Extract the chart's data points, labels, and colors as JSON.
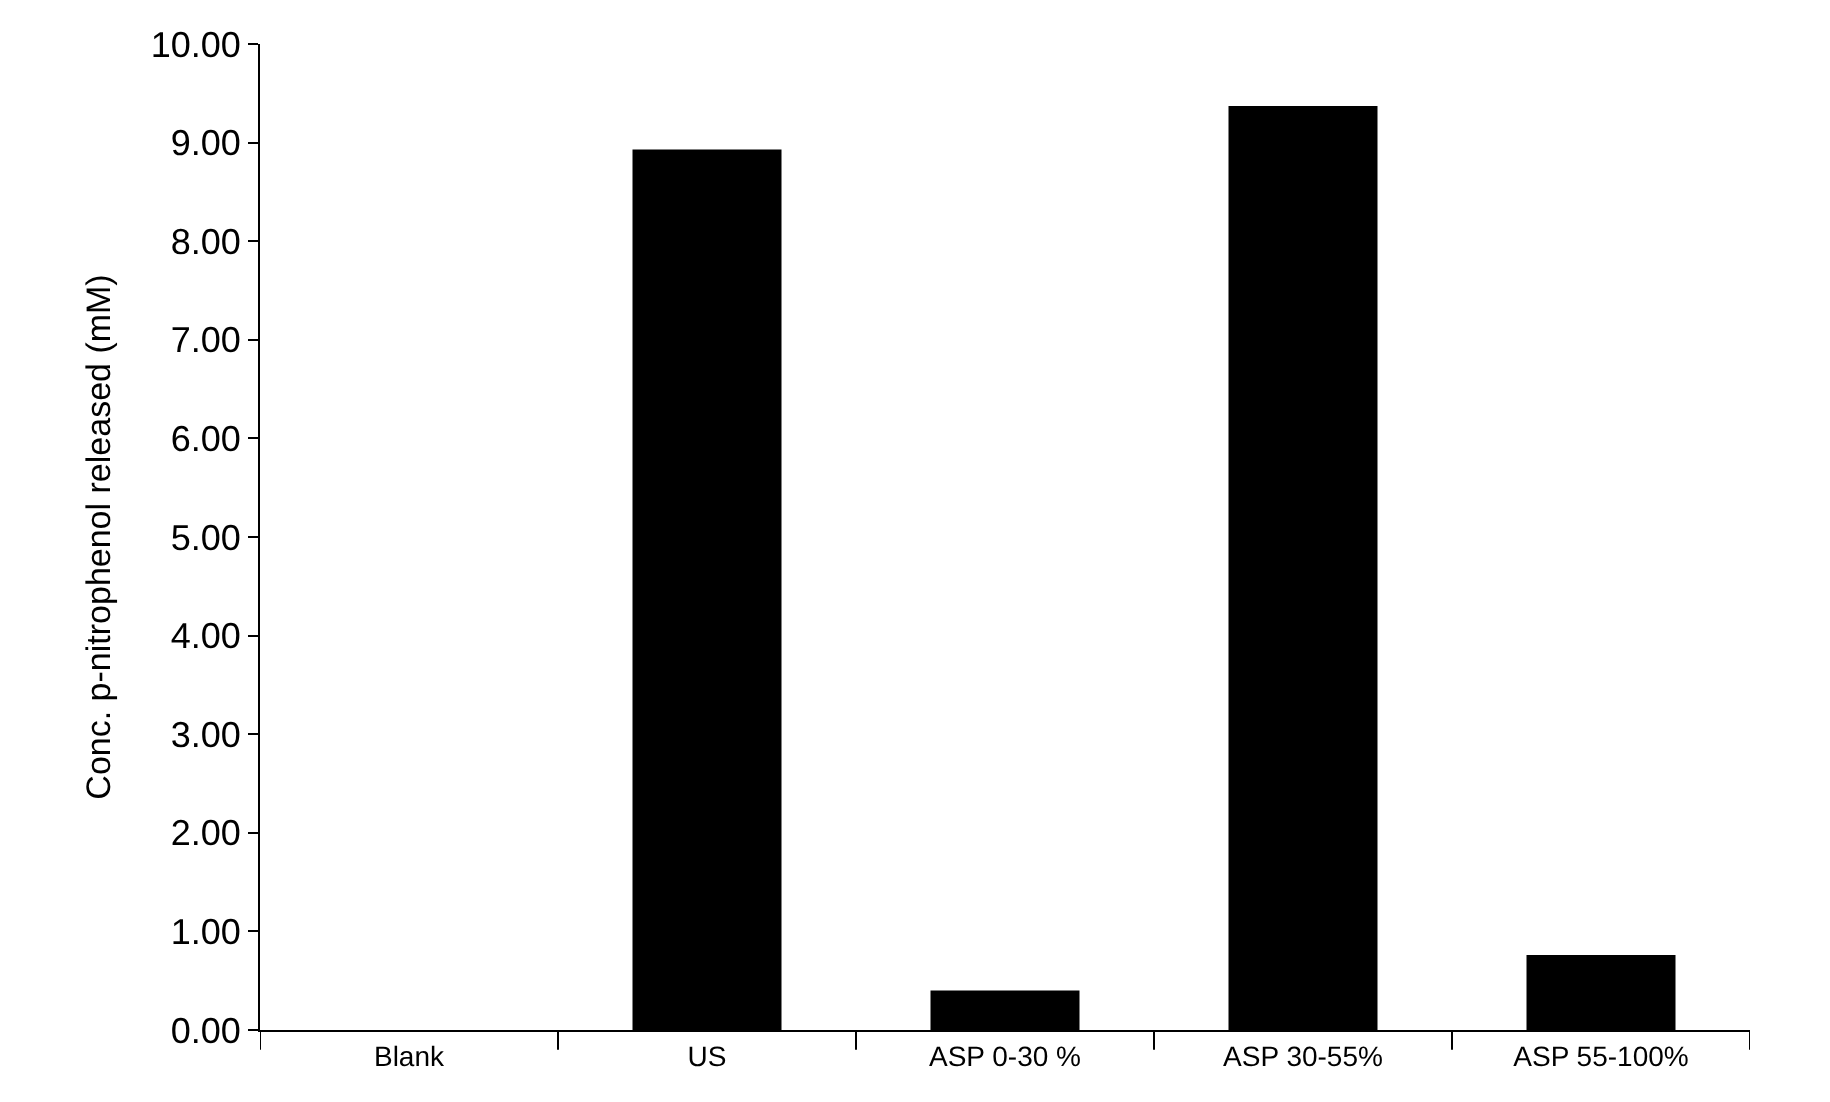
{
  "chart_data": {
    "type": "bar",
    "ylabel": "Conc. p-nitrophenol released (mM)",
    "categories": [
      "Blank",
      "US",
      "ASP 0-30 %",
      "ASP 30-55%",
      "ASP 55-100%"
    ],
    "values": [
      0,
      8.93,
      0.4,
      9.37,
      0.76
    ],
    "color": "#000000",
    "ylim": [
      0,
      10
    ],
    "yticks": [
      {
        "value": 0,
        "label": "0.00"
      },
      {
        "value": 1,
        "label": "1.00"
      },
      {
        "value": 2,
        "label": "2.00"
      },
      {
        "value": 3,
        "label": "3.00"
      },
      {
        "value": 4,
        "label": "4.00"
      },
      {
        "value": 5,
        "label": "5.00"
      },
      {
        "value": 6,
        "label": "6.00"
      },
      {
        "value": 7,
        "label": "7.00"
      },
      {
        "value": 8,
        "label": "8.00"
      },
      {
        "value": 9,
        "label": "9.00"
      },
      {
        "value": 10,
        "label": "10.00"
      }
    ],
    "legend": false
  }
}
